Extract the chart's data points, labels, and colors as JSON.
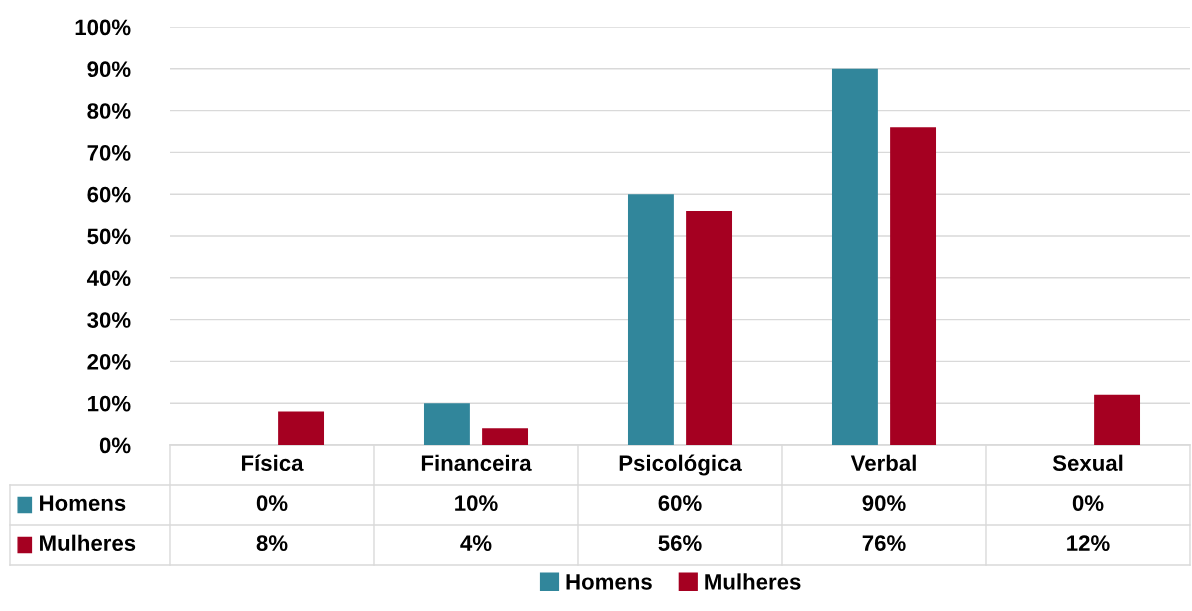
{
  "chart_data": {
    "type": "bar",
    "categories": [
      "Física",
      "Financeira",
      "Psicológica",
      "Verbal",
      "Sexual"
    ],
    "series": [
      {
        "name": "Homens",
        "color": "#31869b",
        "values": [
          0,
          10,
          60,
          90,
          0
        ],
        "value_labels": [
          "0%",
          "10%",
          "60%",
          "90%",
          "0%"
        ]
      },
      {
        "name": "Mulheres",
        "color": "#a50021",
        "values": [
          8,
          4,
          56,
          76,
          12
        ],
        "value_labels": [
          "8%",
          "4%",
          "56%",
          "76%",
          "12%"
        ]
      }
    ],
    "ylim": [
      0,
      100
    ],
    "yticks": [
      {
        "value": 0,
        "label": "0%"
      },
      {
        "value": 10,
        "label": "10%"
      },
      {
        "value": 20,
        "label": "20%"
      },
      {
        "value": 30,
        "label": "30%"
      },
      {
        "value": 40,
        "label": "40%"
      },
      {
        "value": 50,
        "label": "50%"
      },
      {
        "value": 60,
        "label": "60%"
      },
      {
        "value": 70,
        "label": "70%"
      },
      {
        "value": 80,
        "label": "80%"
      },
      {
        "value": 90,
        "label": "90%"
      },
      {
        "value": 100,
        "label": "100%"
      }
    ],
    "grid": "y",
    "legend": "bottom"
  }
}
